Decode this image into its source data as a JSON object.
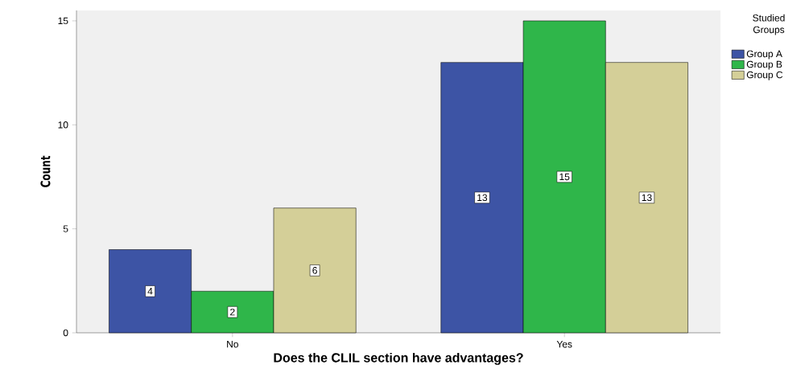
{
  "chart_data": {
    "type": "bar",
    "xlabel": "Does the CLIL section have advantages?",
    "ylabel": "Count",
    "legend_title": "Studied Groups",
    "categories": [
      "No",
      "Yes"
    ],
    "series": [
      {
        "name": "Group A",
        "color": "#3d54a5",
        "values": [
          4,
          13
        ]
      },
      {
        "name": "Group B",
        "color": "#2fb64a",
        "values": [
          2,
          15
        ]
      },
      {
        "name": "Group C",
        "color": "#d4cf98",
        "values": [
          6,
          13
        ]
      }
    ],
    "ylim": [
      0,
      15.5
    ],
    "yticks": [
      0,
      5,
      10,
      15
    ],
    "data_labels": true,
    "grid": false,
    "legend": "top right"
  }
}
